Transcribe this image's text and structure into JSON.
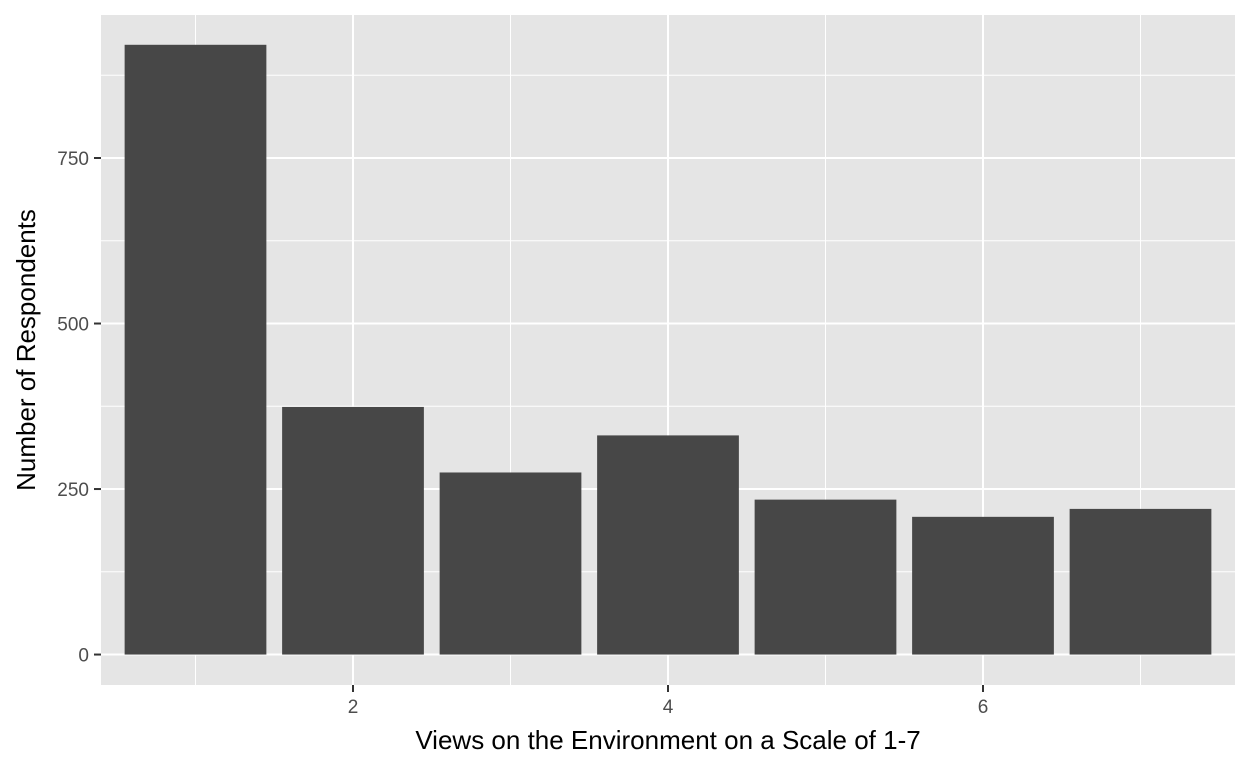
{
  "chart_data": {
    "type": "bar",
    "x": [
      1,
      2,
      3,
      4,
      5,
      6,
      7
    ],
    "values": [
      921,
      374,
      275,
      331,
      234,
      208,
      220
    ],
    "xlabel": "Views on the Environment on a Scale of 1-7",
    "ylabel": "Number of Respondents",
    "xticks": [
      2,
      4,
      6
    ],
    "yticks": [
      0,
      250,
      500,
      750
    ],
    "xlim": [
      0.4,
      7.6
    ],
    "ylim": [
      -46,
      966
    ],
    "grid": true,
    "colors": {
      "bar": "#474747",
      "panel": "#e5e5e5",
      "grid": "#ffffff",
      "tick_text": "#4d4d4d"
    }
  }
}
